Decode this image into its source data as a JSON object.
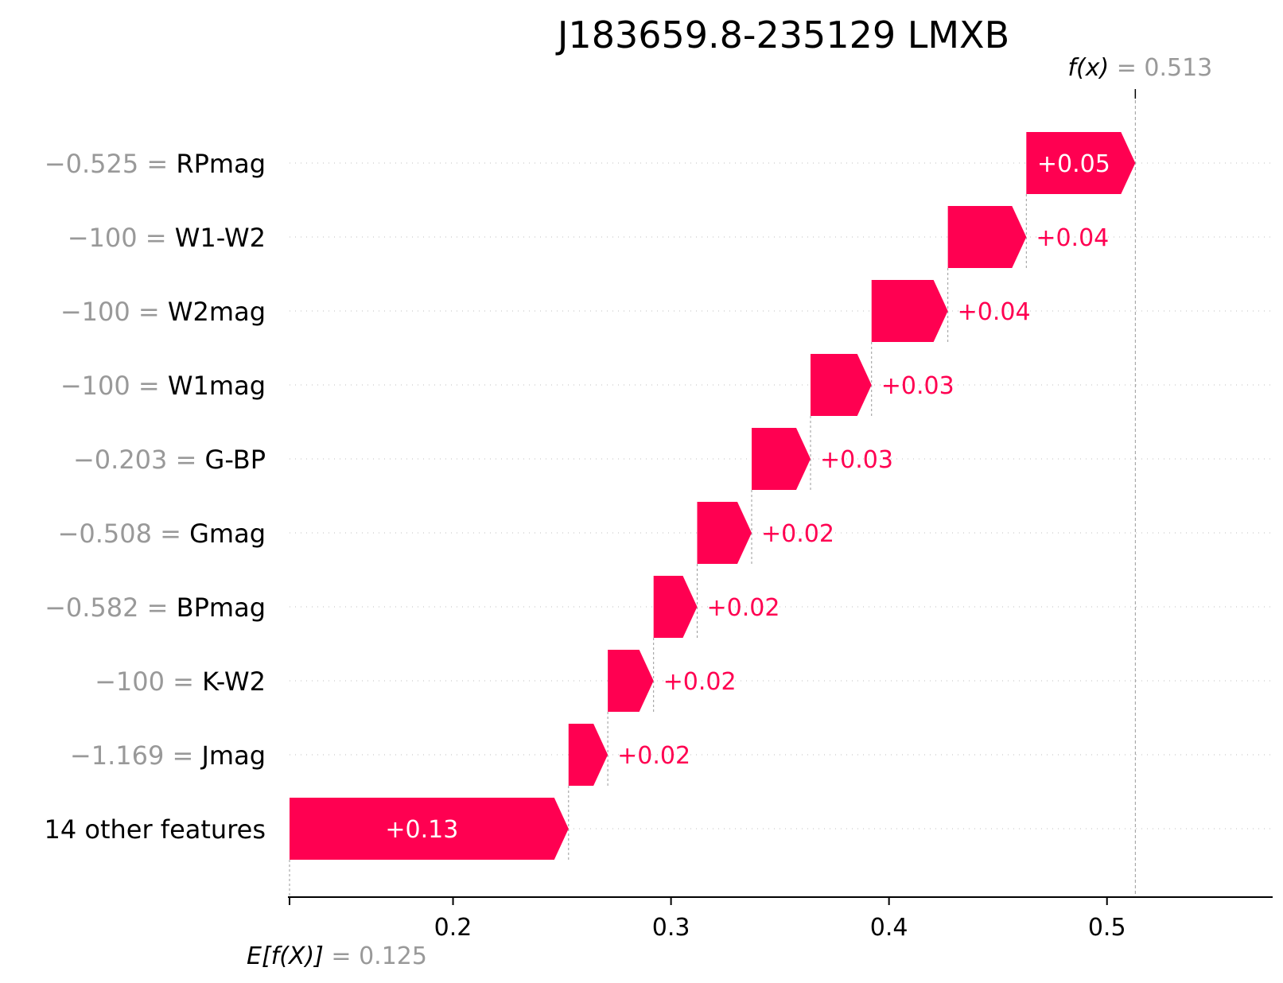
{
  "chart_data": {
    "type": "waterfall",
    "title": "J183659.8-235129 LMXB",
    "base_value": 0.125,
    "base_value_label": "= 0.125",
    "base_value_key": "E[f(X)]",
    "output_value": 0.513,
    "output_value_label": "= 0.513",
    "output_value_key": "f(x)",
    "xlim": [
      0.125,
      0.576
    ],
    "xticks": [
      {
        "value": 0.2,
        "label": "0.2"
      },
      {
        "value": 0.3,
        "label": "0.3"
      },
      {
        "value": 0.4,
        "label": "0.4"
      },
      {
        "value": 0.5,
        "label": "0.5"
      }
    ],
    "features": [
      {
        "name": "RPmag",
        "value": "−0.525 =",
        "start": 0.463,
        "end": 0.513,
        "label": "+0.05"
      },
      {
        "name": "W1-W2",
        "value": "−100 =",
        "start": 0.427,
        "end": 0.463,
        "label": "+0.04"
      },
      {
        "name": "W2mag",
        "value": "−100 =",
        "start": 0.392,
        "end": 0.427,
        "label": "+0.04"
      },
      {
        "name": "W1mag",
        "value": "−100 =",
        "start": 0.364,
        "end": 0.392,
        "label": "+0.03"
      },
      {
        "name": "G-BP",
        "value": "−0.203 =",
        "start": 0.337,
        "end": 0.364,
        "label": "+0.03"
      },
      {
        "name": "Gmag",
        "value": "−0.508 =",
        "start": 0.312,
        "end": 0.337,
        "label": "+0.02"
      },
      {
        "name": "BPmag",
        "value": "−0.582 =",
        "start": 0.292,
        "end": 0.312,
        "label": "+0.02"
      },
      {
        "name": "K-W2",
        "value": "−100 =",
        "start": 0.271,
        "end": 0.292,
        "label": "+0.02"
      },
      {
        "name": "Jmag",
        "value": "−1.169 =",
        "start": 0.253,
        "end": 0.271,
        "label": "+0.02"
      },
      {
        "name": "14 other features",
        "value": "",
        "start": 0.125,
        "end": 0.253,
        "label": "+0.13"
      }
    ],
    "colors": {
      "positive": "#ff0051",
      "axis": "#000000",
      "grid": "#cccccc",
      "muted": "#999999"
    }
  }
}
